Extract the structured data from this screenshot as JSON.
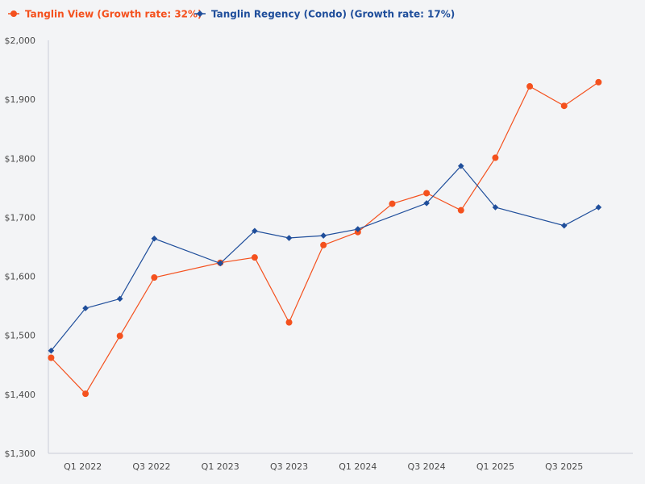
{
  "chart_data": {
    "type": "line",
    "title": "",
    "xlabel": "",
    "ylabel": "",
    "ylim": [
      1300,
      2000
    ],
    "y_ticks": [
      "$1,300",
      "$1,400",
      "$1,500",
      "$1,600",
      "$1,700",
      "$1,800",
      "$1,900",
      "$2,000"
    ],
    "y_tick_values": [
      1300,
      1400,
      1500,
      1600,
      1700,
      1800,
      1900,
      2000
    ],
    "x_ticks": [
      "Q1 2022",
      "Q3 2022",
      "Q1 2023",
      "Q3 2023",
      "Q1 2024",
      "Q3 2024",
      "Q1 2025",
      "Q3 2025"
    ],
    "x_tick_values": [
      2022.0,
      2022.5,
      2023.0,
      2023.5,
      2024.0,
      2024.5,
      2025.0,
      2025.5
    ],
    "xlim": [
      2021.75,
      2026.0
    ],
    "series": [
      {
        "name": "Tanglin View (Growth rate: 32%)",
        "color": "#f4511e",
        "marker": "circle",
        "x": [
          2021.77,
          2022.02,
          2022.27,
          2022.52,
          2023.0,
          2023.25,
          2023.5,
          2023.75,
          2024.0,
          2024.25,
          2024.5,
          2024.75,
          2025.0,
          2025.25,
          2025.5,
          2025.75
        ],
        "values": [
          1462,
          1401,
          1499,
          1598,
          1623,
          1632,
          1522,
          1653,
          1675,
          1723,
          1741,
          1712,
          1801,
          1922,
          1889,
          1929
        ]
      },
      {
        "name": "Tanglin Regency (Condo) (Growth rate: 17%)",
        "color": "#1f4e9b",
        "marker": "diamond",
        "x": [
          2021.77,
          2022.02,
          2022.27,
          2022.52,
          2023.0,
          2023.25,
          2023.5,
          2023.75,
          2024.0,
          2024.5,
          2024.75,
          2025.0,
          2025.5,
          2025.75
        ],
        "values": [
          1474,
          1546,
          1562,
          1664,
          1622,
          1677,
          1665,
          1669,
          1680,
          1724,
          1787,
          1717,
          1686,
          1717
        ]
      }
    ]
  }
}
